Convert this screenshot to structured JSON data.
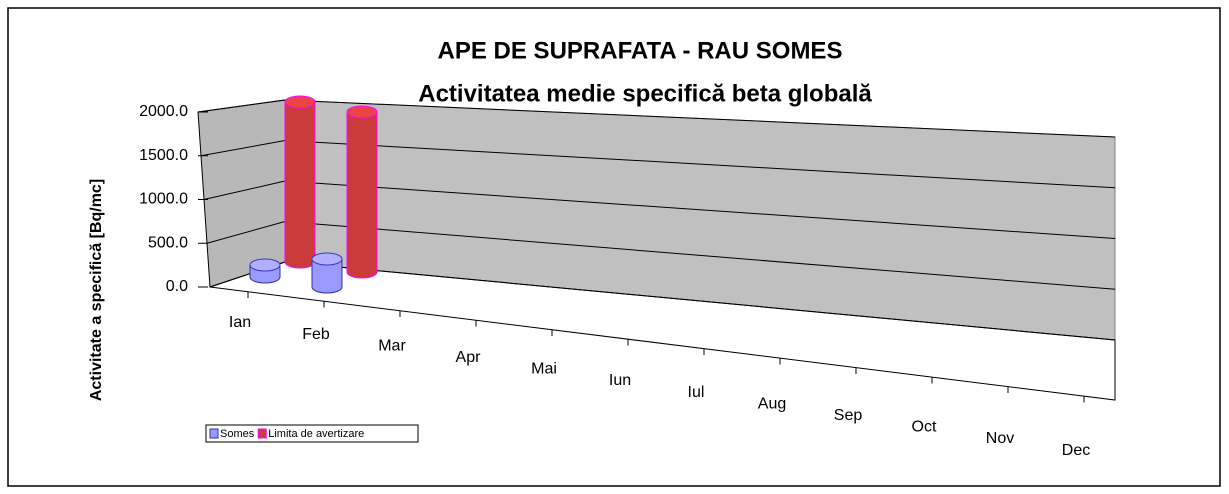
{
  "chart_data": {
    "type": "bar3d",
    "title": "APE DE SUPRAFATA - RAU SOMES",
    "subtitle": "Activitatea medie specifică beta globală",
    "y_label": "Activitate a specifică [Bq/mc]",
    "categories": [
      "Ian",
      "Feb",
      "Mar",
      "Apr",
      "Mai",
      "Iun",
      "Iul",
      "Aug",
      "Sep",
      "Oct",
      "Nov",
      "Dec"
    ],
    "series": [
      {
        "name": "Somes",
        "color": "#9999ff",
        "values": [
          150,
          350,
          null,
          null,
          null,
          null,
          null,
          null,
          null,
          null,
          null,
          null
        ]
      },
      {
        "name": "Limita de avertizare",
        "color": "#cc3b3b",
        "values": [
          2000,
          2000,
          null,
          null,
          null,
          null,
          null,
          null,
          null,
          null,
          null,
          null
        ]
      }
    ],
    "ylim": [
      0,
      2000
    ],
    "yticks": [
      {
        "value": 0,
        "label": "0.0"
      },
      {
        "value": 500,
        "label": "500.0"
      },
      {
        "value": 1000,
        "label": "1000.0"
      },
      {
        "value": 1500,
        "label": "1500.0"
      },
      {
        "value": 2000,
        "label": "2000.0"
      }
    ],
    "grid": true,
    "legend": "bottom-left"
  }
}
